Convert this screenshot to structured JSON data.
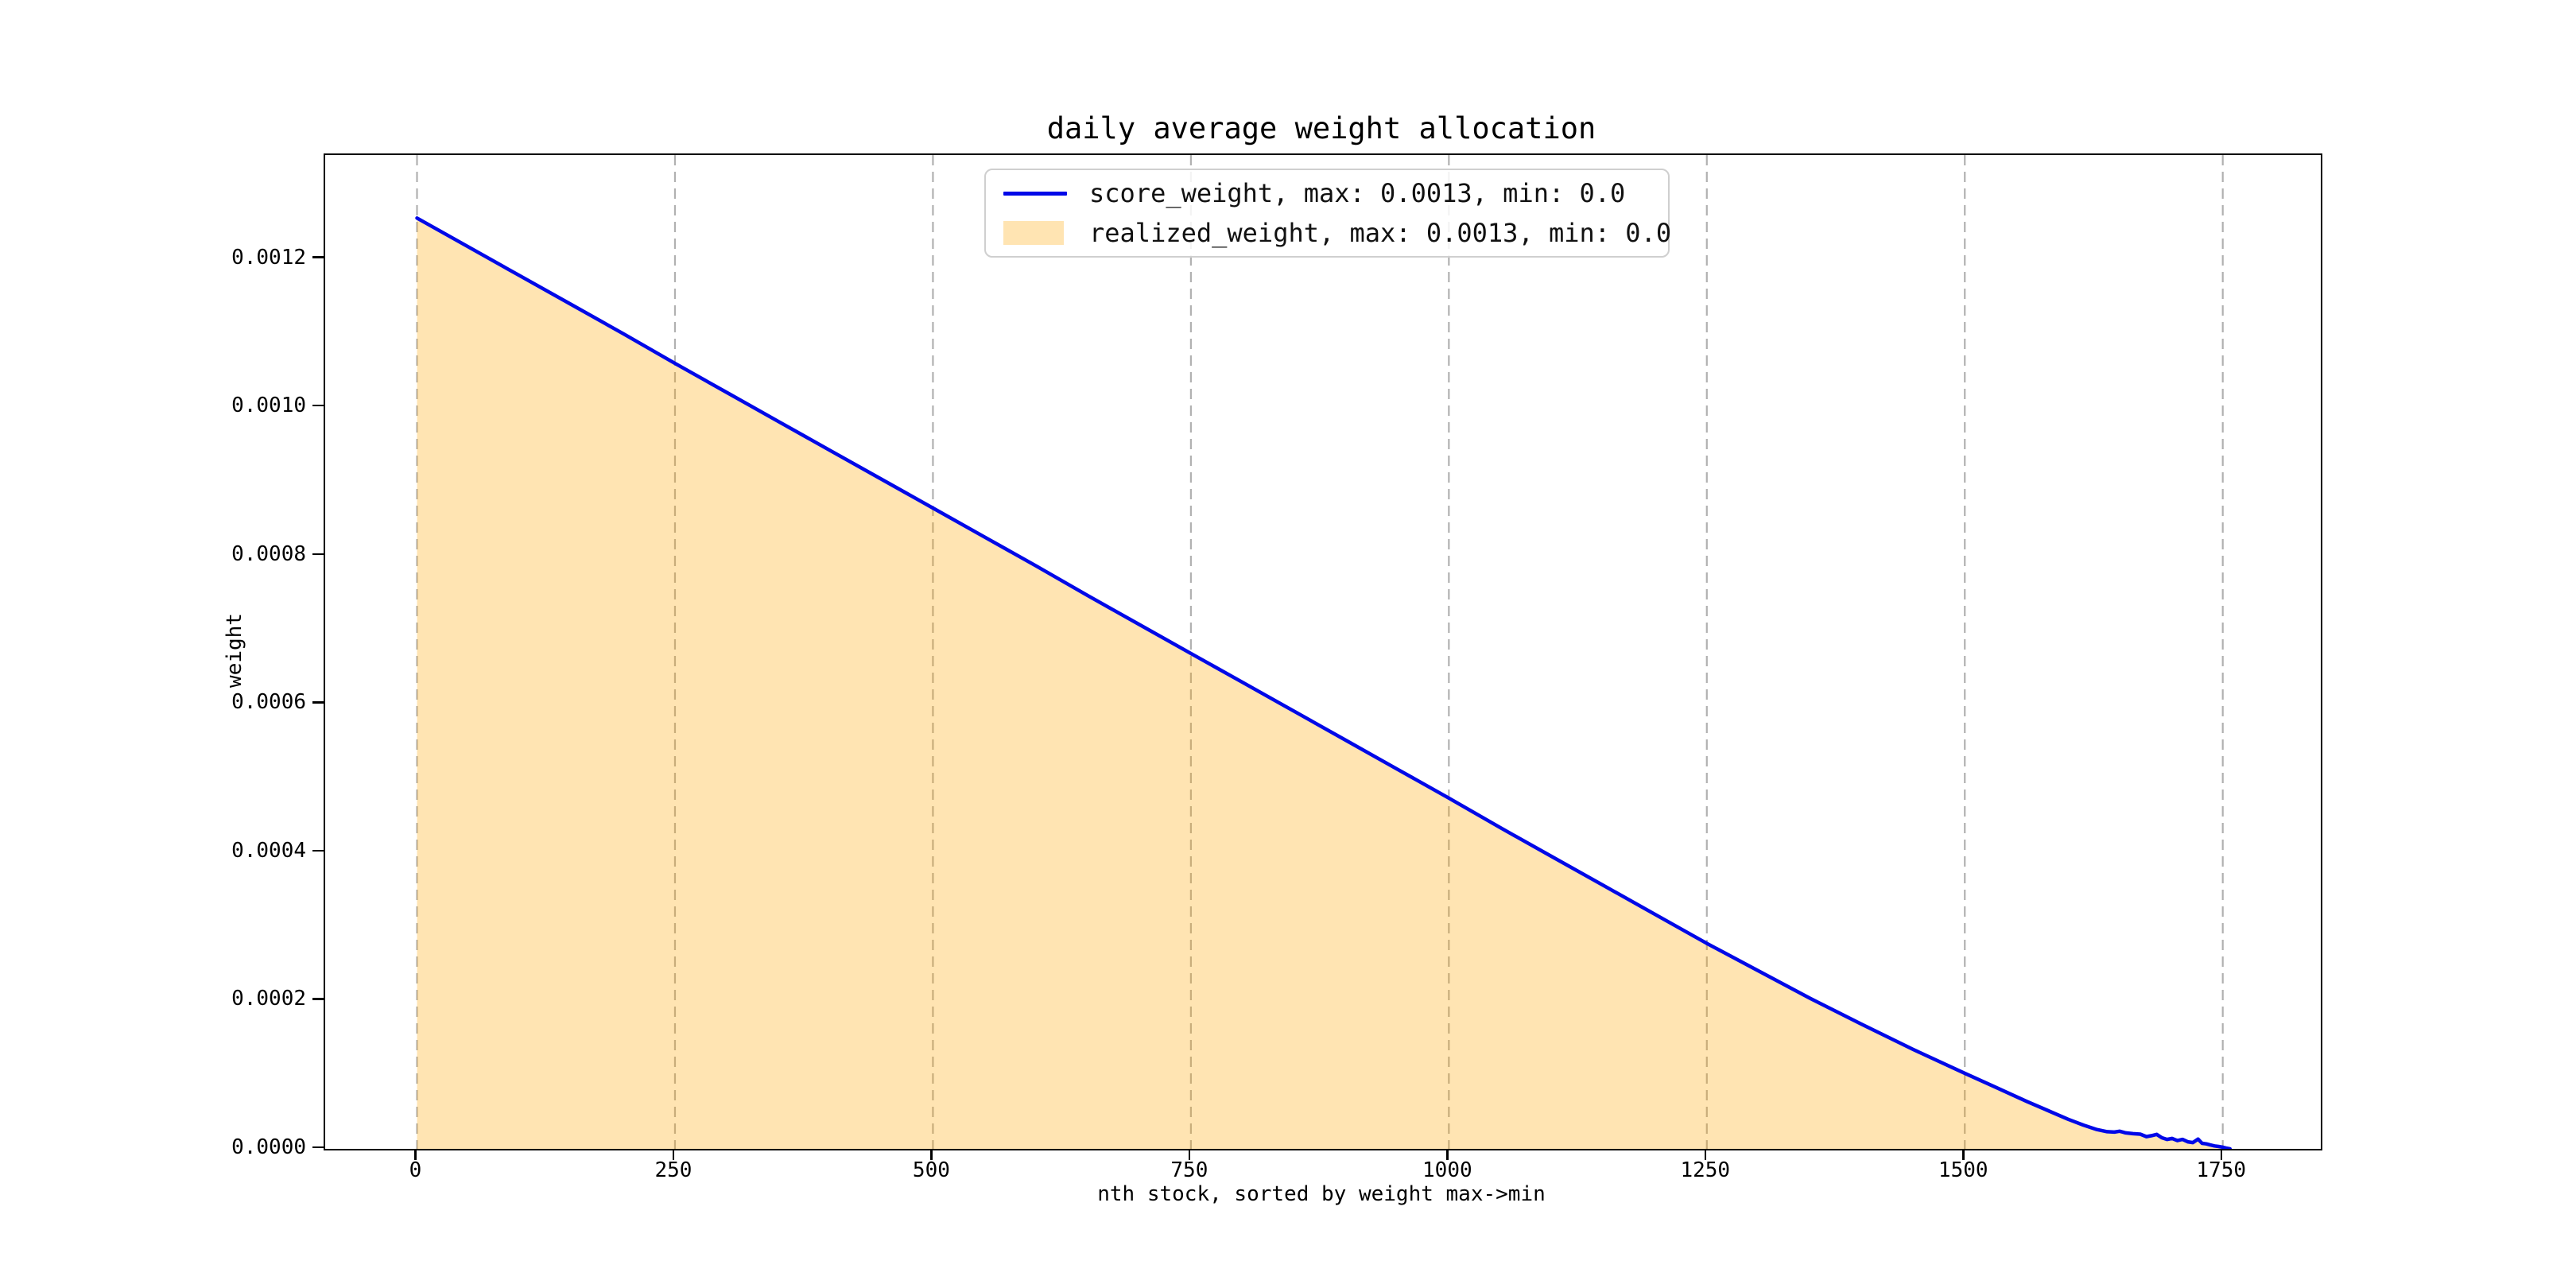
{
  "figure": {
    "title": "daily average weight allocation"
  },
  "axes": {
    "xlabel": "nth stock, sorted by weight max->min",
    "ylabel": "weight",
    "x_ticks": [
      0,
      250,
      500,
      750,
      1000,
      1250,
      1500,
      1750
    ],
    "y_tick_labels": [
      "0.0000",
      "0.0002",
      "0.0004",
      "0.0006",
      "0.0008",
      "0.0010",
      "0.0012"
    ]
  },
  "legend": {
    "items": [
      {
        "label": "score_weight, max: 0.0013, min: 0.0",
        "swatch": "line",
        "color": "#0008e8"
      },
      {
        "label": "realized_weight, max: 0.0013, min: 0.0",
        "swatch": "patch",
        "color": "rgba(255,165,0,0.30)"
      }
    ]
  },
  "colors": {
    "line": "#0008e8",
    "fill": "rgba(255,165,0,0.30)",
    "grid": "#b1b1b1",
    "spine": "#000000",
    "background": "#ffffff"
  },
  "chart_data": {
    "type": "area",
    "title": "daily average weight allocation",
    "xlabel": "nth stock, sorted by weight max->min",
    "ylabel": "weight",
    "xlim": [
      -89,
      1845
    ],
    "ylim": [
      0,
      0.00134
    ],
    "x_ticks": [
      0,
      250,
      500,
      750,
      1000,
      1250,
      1500,
      1750
    ],
    "y_ticks": [
      0.0,
      0.0002,
      0.0004,
      0.0006,
      0.0008,
      0.001,
      0.0012
    ],
    "grid": "vertical dashed gray gridlines at every x tick, no horizontal grid",
    "legend_position": "upper center",
    "series": [
      {
        "name": "score_weight, max: 0.0013, min: 0.0",
        "type": "line",
        "color": "blue",
        "max": 0.0013,
        "min": 0.0,
        "note": "nearly linear decline from 0.001255 at n=0 to ~0 at n=1757, flattening with small noisy wiggles after n~1600"
      },
      {
        "name": "realized_weight, max: 0.0013, min: 0.0",
        "type": "area",
        "color": "orange alpha 0.3",
        "max": 0.0013,
        "min": 0.0,
        "note": "filled area under the identical curve, fill between y=0 and the score_weight line"
      }
    ],
    "points": [
      [
        0,
        0.001255
      ],
      [
        50,
        0.001216
      ],
      [
        100,
        0.001177
      ],
      [
        150,
        0.001138
      ],
      [
        200,
        0.001099
      ],
      [
        250,
        0.001059
      ],
      [
        300,
        0.00102
      ],
      [
        350,
        0.000981
      ],
      [
        400,
        0.000942
      ],
      [
        450,
        0.000903
      ],
      [
        500,
        0.000864
      ],
      [
        550,
        0.000825
      ],
      [
        600,
        0.000786
      ],
      [
        650,
        0.000746
      ],
      [
        700,
        0.000707
      ],
      [
        750,
        0.000668
      ],
      [
        800,
        0.000629
      ],
      [
        850,
        0.00059
      ],
      [
        900,
        0.000551
      ],
      [
        950,
        0.000512
      ],
      [
        1000,
        0.000473
      ],
      [
        1050,
        0.000433
      ],
      [
        1100,
        0.000394
      ],
      [
        1150,
        0.000355
      ],
      [
        1200,
        0.000316
      ],
      [
        1250,
        0.000277
      ],
      [
        1300,
        0.00024
      ],
      [
        1350,
        0.000203
      ],
      [
        1400,
        0.000168
      ],
      [
        1450,
        0.000134
      ],
      [
        1500,
        0.000102
      ],
      [
        1530,
        8.3e-05
      ],
      [
        1560,
        6.4e-05
      ],
      [
        1580,
        5.2e-05
      ],
      [
        1600,
        4e-05
      ],
      [
        1615,
        3.2e-05
      ],
      [
        1628,
        2.6e-05
      ],
      [
        1638,
        2.32e-05
      ],
      [
        1645,
        2.26e-05
      ],
      [
        1650,
        2.38e-05
      ],
      [
        1656,
        2.15e-05
      ],
      [
        1663,
        2.05e-05
      ],
      [
        1670,
        1.98e-05
      ],
      [
        1676,
        1.65e-05
      ],
      [
        1681,
        1.78e-05
      ],
      [
        1686,
        1.95e-05
      ],
      [
        1691,
        1.5e-05
      ],
      [
        1696,
        1.28e-05
      ],
      [
        1701,
        1.4e-05
      ],
      [
        1706,
        1.12e-05
      ],
      [
        1711,
        1.28e-05
      ],
      [
        1716,
        9.5e-06
      ],
      [
        1721,
        8.5e-06
      ],
      [
        1726,
        1.32e-05
      ],
      [
        1730,
        7.5e-06
      ],
      [
        1734,
        6.8e-06
      ],
      [
        1738,
        5.2e-06
      ],
      [
        1742,
        4e-06
      ],
      [
        1746,
        3.2e-06
      ],
      [
        1750,
        2.2e-06
      ],
      [
        1753,
        1.2e-06
      ],
      [
        1757,
        0.0
      ]
    ]
  }
}
